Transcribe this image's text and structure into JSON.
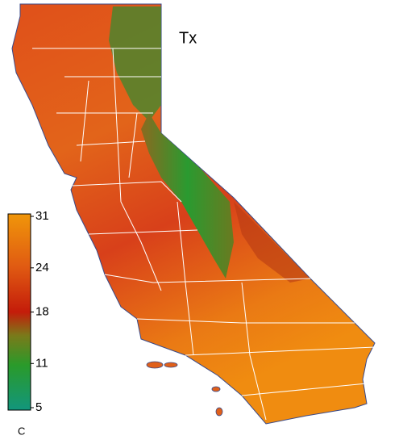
{
  "map": {
    "title": "Tx",
    "colorbar": {
      "range": [
        5,
        31
      ],
      "ticks": [
        31,
        24,
        18,
        11,
        5
      ],
      "unit": "C"
    }
  }
}
